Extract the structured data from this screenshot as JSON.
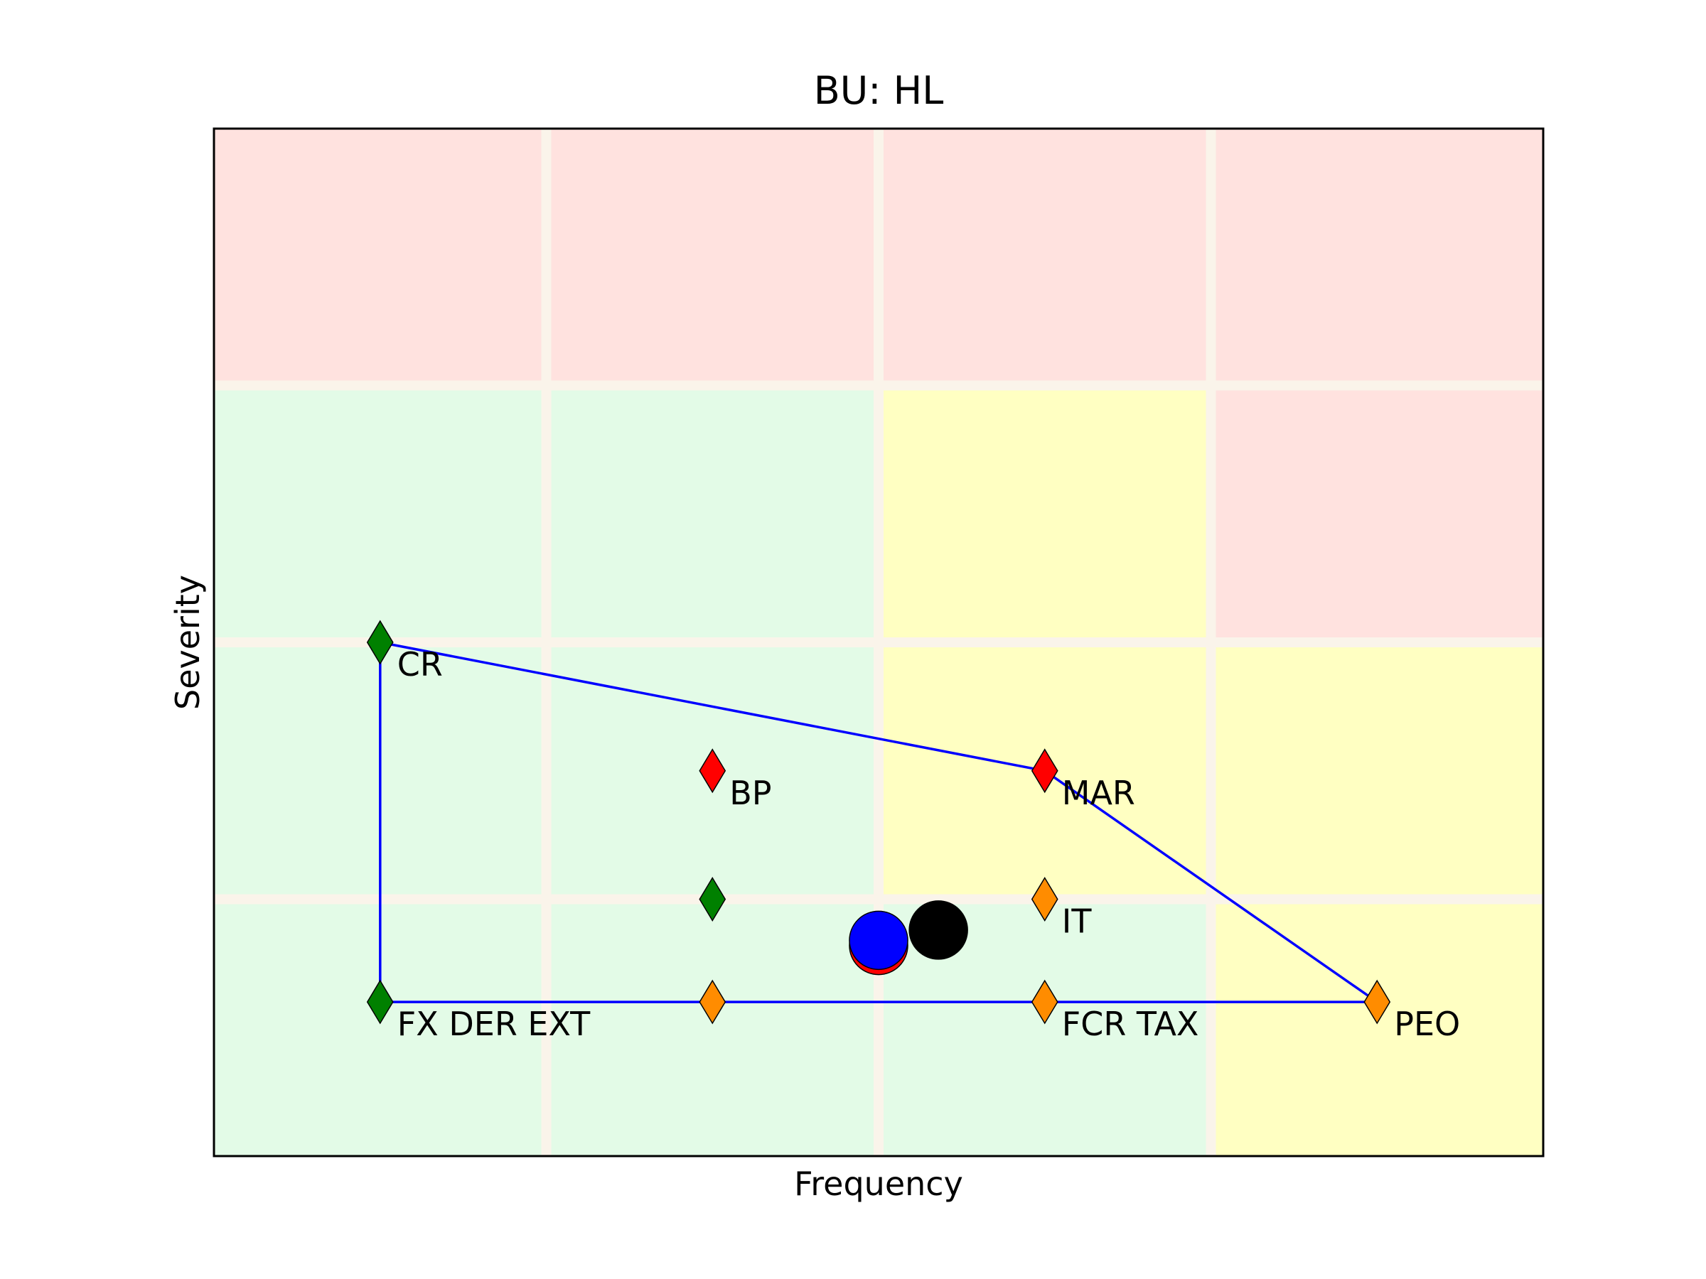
{
  "chart_data": {
    "type": "scatter",
    "title": "BU: HL",
    "xlabel": "Frequency",
    "ylabel": "Severity",
    "xlim": [
      0,
      4
    ],
    "ylim": [
      0,
      4
    ],
    "grid": false,
    "zones": [
      {
        "row": 0,
        "col": 0,
        "color": "#e3fbe7"
      },
      {
        "row": 0,
        "col": 1,
        "color": "#e3fbe7"
      },
      {
        "row": 0,
        "col": 2,
        "color": "#e3fbe7"
      },
      {
        "row": 0,
        "col": 3,
        "color": "#ffffc2"
      },
      {
        "row": 1,
        "col": 0,
        "color": "#e3fbe7"
      },
      {
        "row": 1,
        "col": 1,
        "color": "#e3fbe7"
      },
      {
        "row": 1,
        "col": 2,
        "color": "#ffffc2"
      },
      {
        "row": 1,
        "col": 3,
        "color": "#ffffc2"
      },
      {
        "row": 2,
        "col": 0,
        "color": "#e3fbe7"
      },
      {
        "row": 2,
        "col": 1,
        "color": "#e3fbe7"
      },
      {
        "row": 2,
        "col": 2,
        "color": "#ffffc2"
      },
      {
        "row": 2,
        "col": 3,
        "color": "#ffe2df"
      },
      {
        "row": 3,
        "col": 0,
        "color": "#ffe2df"
      },
      {
        "row": 3,
        "col": 1,
        "color": "#ffe2df"
      },
      {
        "row": 3,
        "col": 2,
        "color": "#ffe2df"
      },
      {
        "row": 3,
        "col": 3,
        "color": "#ffe2df"
      }
    ],
    "points": [
      {
        "x": 0.5,
        "y": 2.0,
        "color": "#008000",
        "label": "CR"
      },
      {
        "x": 1.5,
        "y": 1.5,
        "color": "#ff0000",
        "label": "BP"
      },
      {
        "x": 2.5,
        "y": 1.5,
        "color": "#ff0000",
        "label": "MAR"
      },
      {
        "x": 1.5,
        "y": 1.0,
        "color": "#008000",
        "label": ""
      },
      {
        "x": 2.5,
        "y": 1.0,
        "color": "#ff8c00",
        "label": "IT"
      },
      {
        "x": 0.5,
        "y": 0.6,
        "color": "#008000",
        "label": "FX DER EXT"
      },
      {
        "x": 1.5,
        "y": 0.6,
        "color": "#ff8c00",
        "label": ""
      },
      {
        "x": 2.5,
        "y": 0.6,
        "color": "#ff8c00",
        "label": "FCR TAX"
      },
      {
        "x": 3.5,
        "y": 0.6,
        "color": "#ff8c00",
        "label": "PEO"
      }
    ],
    "outline": {
      "color": "#0000ff",
      "path": [
        [
          0.5,
          0.6
        ],
        [
          0.5,
          2.0
        ],
        [
          2.5,
          1.5
        ],
        [
          3.5,
          0.6
        ],
        [
          0.5,
          0.6
        ]
      ]
    },
    "centroids": [
      {
        "x": 2.0,
        "y": 0.82,
        "color": "#ff0000"
      },
      {
        "x": 2.0,
        "y": 0.84,
        "color": "#0000ff"
      },
      {
        "x": 2.18,
        "y": 0.88,
        "color": "#000000"
      }
    ]
  }
}
